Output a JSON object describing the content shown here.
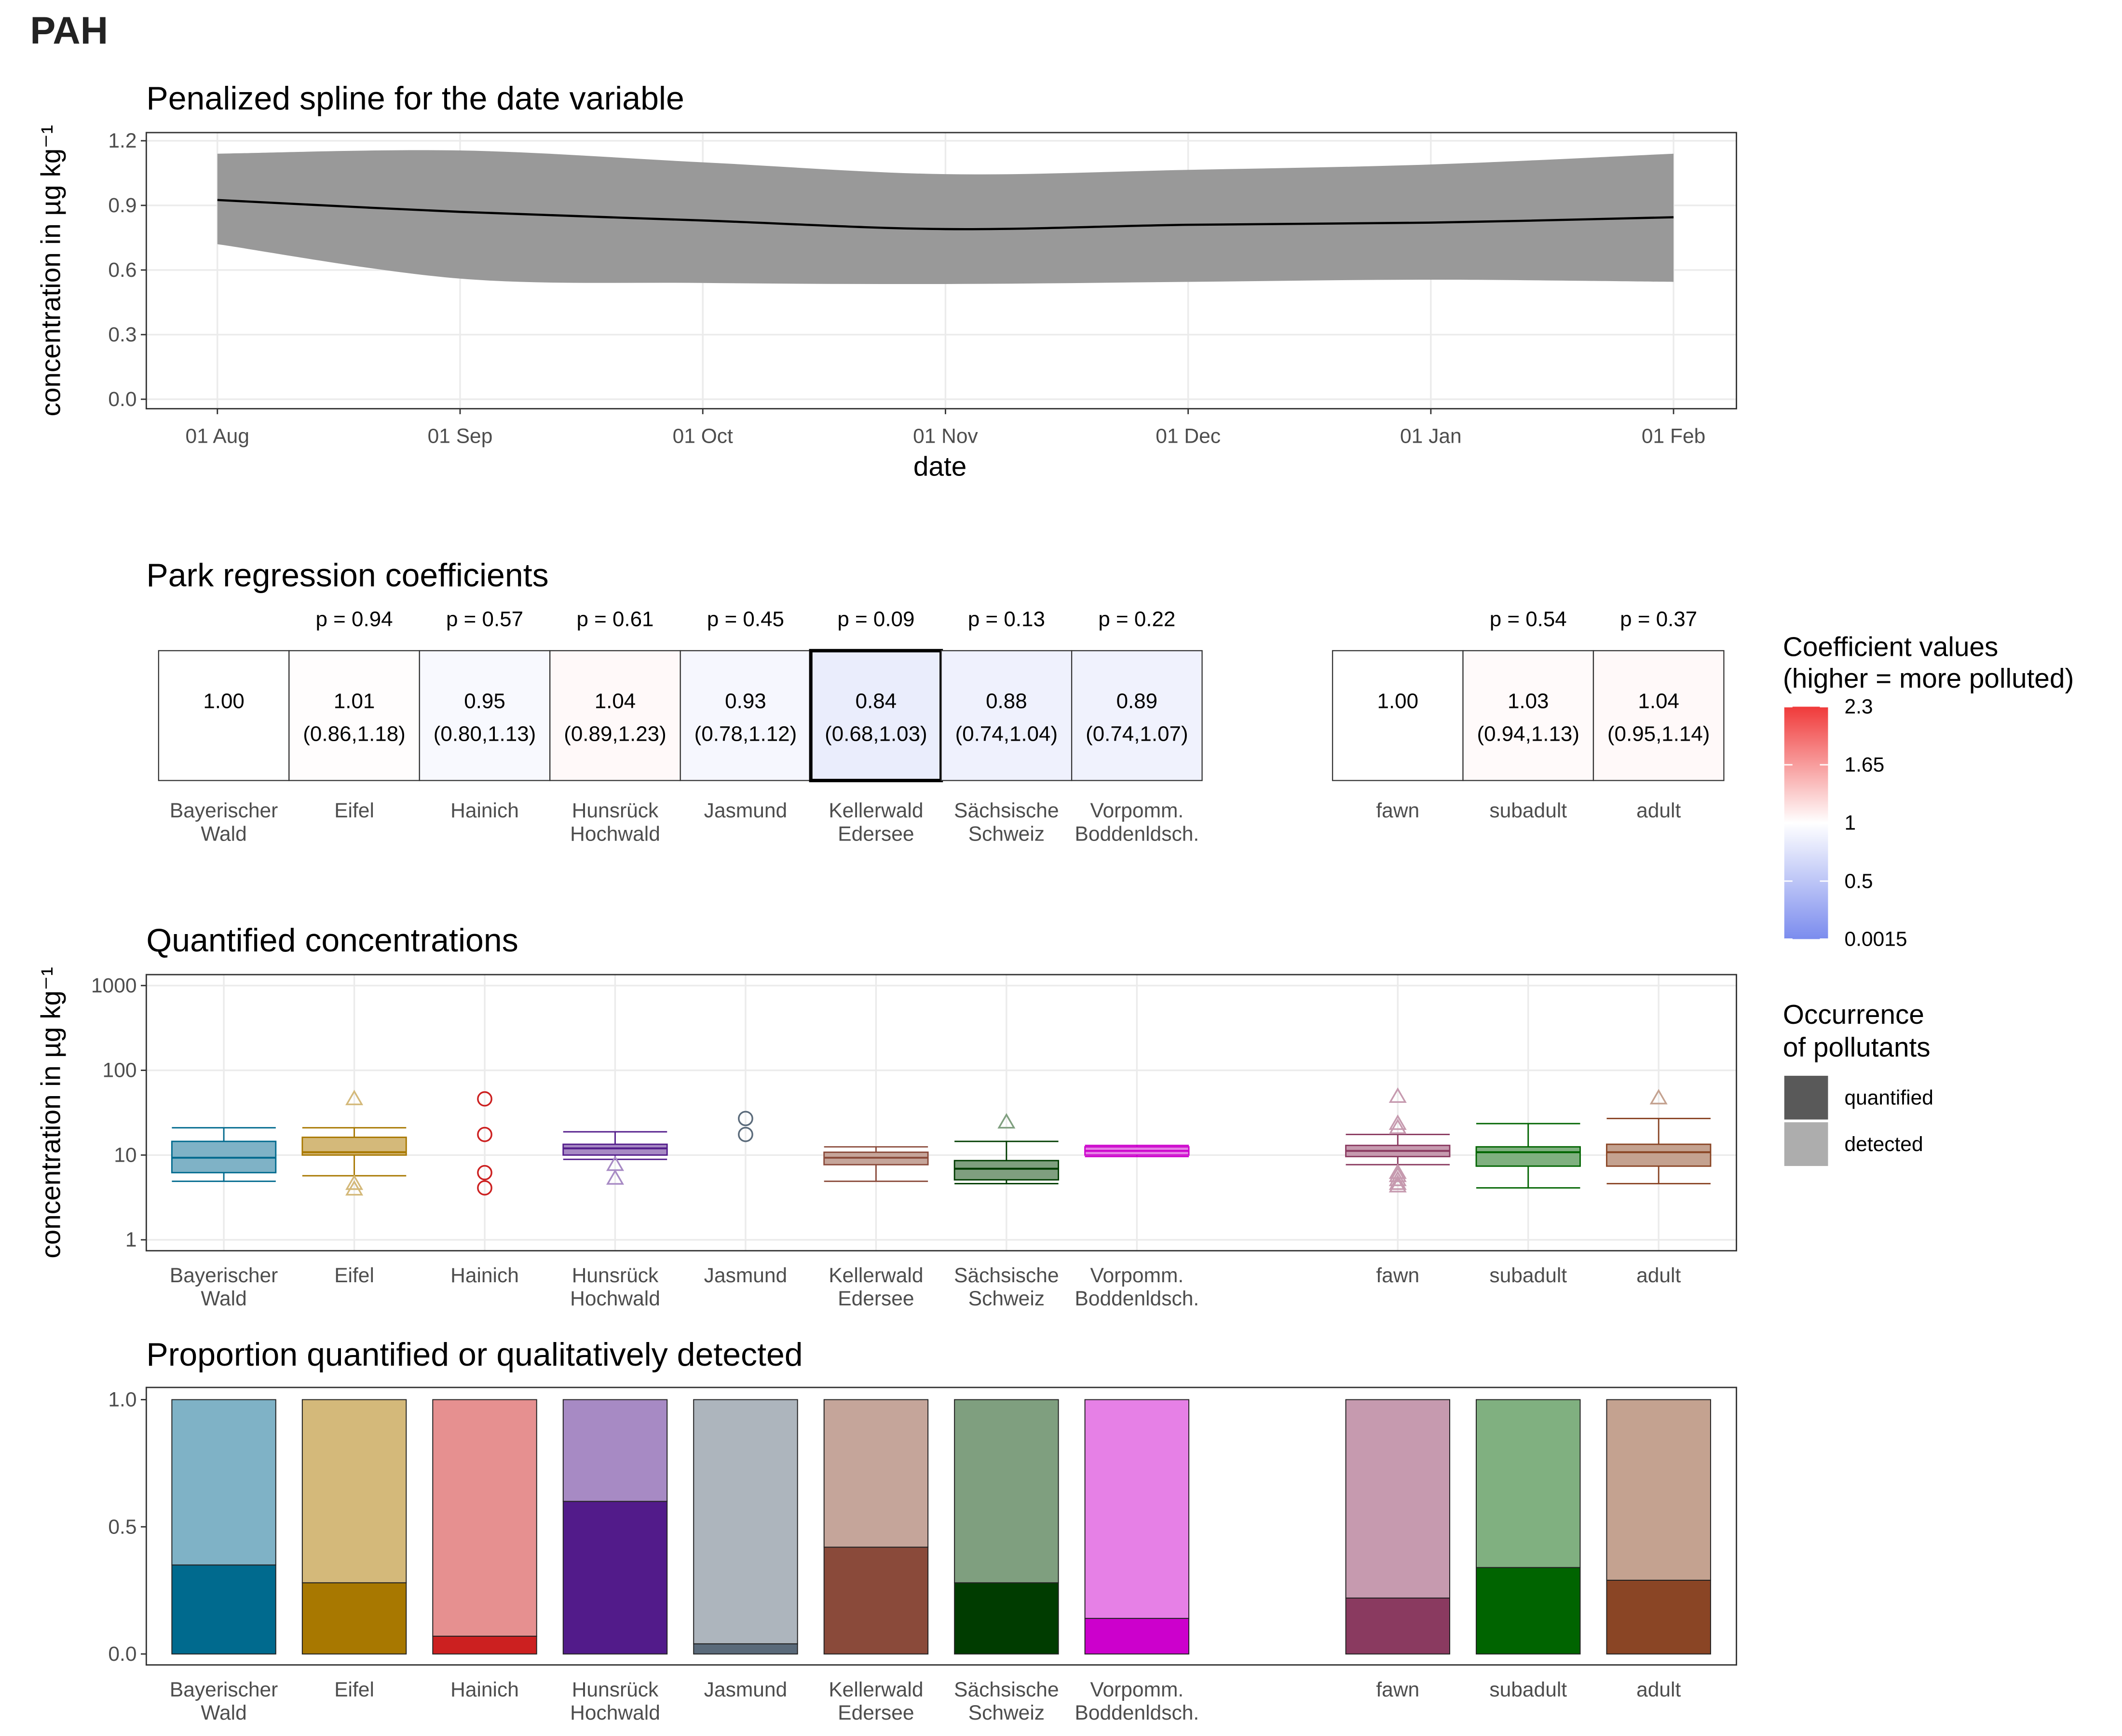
{
  "page_title": "PAH",
  "chart_data": [
    {
      "type": "line",
      "title": "Penalized spline for the date variable",
      "x": [
        "01 Aug",
        "01 Sep",
        "01 Oct",
        "01 Nov",
        "01 Dec",
        "01 Jan",
        "01 Feb"
      ],
      "values": [
        0.925,
        0.87,
        0.83,
        0.79,
        0.81,
        0.82,
        0.845
      ],
      "lower": [
        0.72,
        0.56,
        0.54,
        0.535,
        0.545,
        0.555,
        0.545
      ],
      "upper": [
        1.14,
        1.155,
        1.1,
        1.045,
        1.065,
        1.09,
        1.14
      ],
      "xlabel": "date",
      "ylabel": "concentration in µg kg⁻¹",
      "ylim": [
        -0.044,
        1.238
      ],
      "yticks": [
        {
          "value": 0,
          "label": "0.0"
        },
        0.3,
        0.6,
        0.9,
        1.2
      ],
      "grid": true,
      "color": "#000000",
      "band_color": "#999999"
    },
    {
      "type": "heatmap",
      "title": "Park regression coefficients",
      "categories": [
        "Bayerischer\nWald",
        "Eifel",
        "Hainich",
        "Hunsrück\nHochwald",
        "Jasmund",
        "Kellerwald\nEdersee",
        "Sächsische\nSchweiz",
        "Vorpomm.\nBoddenldsch.",
        null,
        "fawn",
        "subadult",
        "adult"
      ],
      "values": [
        1,
        1.01,
        0.95,
        1.04,
        0.93,
        0.84,
        0.88,
        0.89,
        null,
        1,
        1.03,
        1.04
      ],
      "value_labels": [
        "1.00",
        "1.01",
        "0.95",
        "1.04",
        "0.93",
        "0.84",
        "0.88",
        "0.89",
        null,
        "1.00",
        "1.03",
        "1.04"
      ],
      "ci_labels": [
        null,
        "(0.86,1.18)",
        "(0.80,1.13)",
        "(0.89,1.23)",
        "(0.78,1.12)",
        "(0.68,1.03)",
        "(0.74,1.04)",
        "(0.74,1.07)",
        null,
        null,
        "(0.94,1.13)",
        "(0.95,1.14)"
      ],
      "p_labels": [
        null,
        "p = 0.94",
        "p = 0.57",
        "p = 0.61",
        "p = 0.45",
        "p = 0.09",
        "p = 0.13",
        "p = 0.22",
        null,
        null,
        "p = 0.54",
        "p = 0.37"
      ],
      "highlight": "Kellerwald\nEdersee",
      "colorbar": {
        "title": "Coefficient values\n(higher = more polluted)",
        "ticks": [
          2.3,
          1.65,
          1,
          0.5,
          0.0015
        ],
        "lim": [
          0.0015,
          2.3
        ],
        "mid": 1,
        "colors": [
          "#7b8cee",
          "#ffffff",
          "#f03a3a"
        ]
      }
    },
    {
      "type": "box",
      "title": "Quantified concentrations",
      "ylabel": "concentration in µg kg⁻¹",
      "log": true,
      "ylim": [
        0.743,
        1346
      ],
      "yticks": [
        1,
        10,
        100,
        1000
      ],
      "grid": true,
      "categories": [
        "Bayerischer\nWald",
        "Eifel",
        "Hainich",
        "Hunsrück\nHochwald",
        "Jasmund",
        "Kellerwald\nEdersee",
        "Sächsische\nSchweiz",
        "Vorpomm.\nBoddenldsch.",
        null,
        "fawn",
        "subadult",
        "adult"
      ],
      "colors": [
        "#006a8e",
        "#a87800",
        "#cc2020",
        "#521b8a",
        "#5a6a7a",
        "#8a4a3a",
        "#003c00",
        "#cc00cc",
        null,
        "#8a3a60",
        "#006400",
        "#8a4525"
      ],
      "fill_colors": [
        "#7fb2c6",
        "#d4b97a",
        "#e69090",
        "#a78ac4",
        "#adb5bd",
        "#c5a59a",
        "#7f9f7f",
        "#e680e6",
        null,
        "#c69aaf",
        "#80b080",
        "#c4a290"
      ],
      "outlier_shapes": [
        "triangle",
        "triangle",
        "circle",
        "triangle",
        "circle",
        "triangle",
        "triangle",
        "triangle",
        null,
        "triangle",
        "triangle",
        "triangle"
      ],
      "boxes": [
        {
          "min": 4.9,
          "q1": 6.2,
          "median": 9.3,
          "q3": 14.5,
          "max": 21,
          "outliers": []
        },
        {
          "min": 5.7,
          "q1": 10,
          "median": 10.8,
          "q3": 16.2,
          "max": 21,
          "outliers": [
            46,
            4.6,
            3.95
          ]
        },
        {
          "outliers": [
            46,
            17.5,
            6.2,
            4.1
          ]
        },
        {
          "min": 8.9,
          "q1": 10,
          "median": 12,
          "q3": 13.4,
          "max": 18.8,
          "outliers": [
            7.7,
            5.3
          ]
        },
        {
          "outliers": [
            27,
            17.5
          ]
        },
        {
          "min": 4.9,
          "q1": 7.7,
          "median": 9.3,
          "q3": 10.8,
          "max": 12.5,
          "outliers": []
        },
        {
          "min": 4.6,
          "q1": 5.1,
          "median": 6.9,
          "q3": 8.6,
          "max": 14.5,
          "outliers": [
            24.4
          ]
        },
        {
          "min": 9.6,
          "q1": 10,
          "median": 11.2,
          "q3": 12.5,
          "max": 13,
          "outliers": []
        },
        null,
        {
          "min": 7.7,
          "q1": 9.6,
          "median": 11.2,
          "q3": 13,
          "max": 17.5,
          "outliers": [
            49,
            23.5,
            21,
            6.2,
            5.7,
            5.1,
            4.6,
            4.3
          ]
        },
        {
          "min": 4.1,
          "q1": 7.4,
          "median": 10.8,
          "q3": 12.5,
          "max": 23.5,
          "outliers": []
        },
        {
          "min": 4.6,
          "q1": 7.4,
          "median": 10.8,
          "q3": 13.4,
          "max": 27,
          "outliers": [
            47
          ]
        }
      ]
    },
    {
      "type": "stacked-bar",
      "title": "Proportion quantified or qualitatively detected",
      "categories": [
        "Bayerischer\nWald",
        "Eifel",
        "Hainich",
        "Hunsrück\nHochwald",
        "Jasmund",
        "Kellerwald\nEdersee",
        "Sächsische\nSchweiz",
        "Vorpomm.\nBoddenldsch.",
        null,
        "fawn",
        "subadult",
        "adult"
      ],
      "ylim": [
        -0.043,
        1.048
      ],
      "yticks": [
        {
          "value": 0,
          "label": "0.0"
        },
        0.5,
        {
          "value": 1,
          "label": "1.0"
        }
      ],
      "legend_title": "Occurrence\nof pollutants",
      "series": [
        {
          "name": "quantified",
          "color": "#595959",
          "colors": [
            "#006a8e",
            "#a87800",
            "#cc2020",
            "#521b8a",
            "#5a6a7a",
            "#8a4a3a",
            "#003c00",
            "#cc00cc",
            null,
            "#8a3a60",
            "#006400",
            "#8a4525"
          ],
          "values": [
            0.35,
            0.28,
            0.07,
            0.6,
            0.04,
            0.42,
            0.28,
            0.14,
            null,
            0.22,
            0.34,
            0.29
          ]
        },
        {
          "name": "detected",
          "color": "#adadad",
          "colors": [
            "#7fb2c6",
            "#d4b97a",
            "#e69090",
            "#a78ac4",
            "#adb5bd",
            "#c5a59a",
            "#7f9f7f",
            "#e680e6",
            null,
            "#c69aaf",
            "#80b080",
            "#c4a290"
          ],
          "values": [
            0.65,
            0.72,
            0.93,
            0.4,
            0.96,
            0.58,
            0.72,
            0.86,
            null,
            0.78,
            0.66,
            0.71
          ]
        }
      ]
    }
  ]
}
